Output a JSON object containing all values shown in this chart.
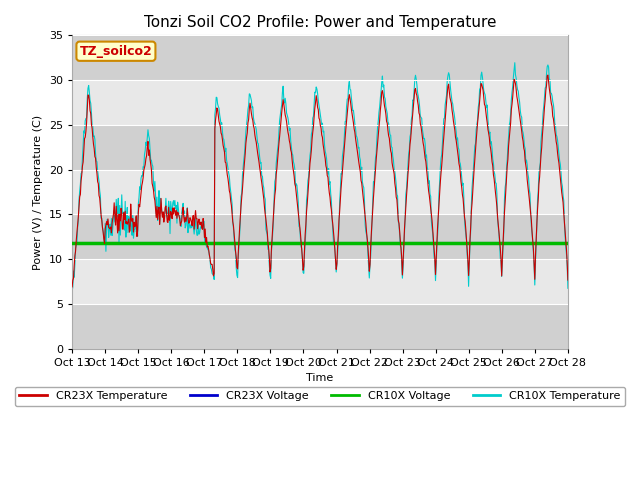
{
  "title": "Tonzi Soil CO2 Profile: Power and Temperature",
  "ylabel": "Power (V) / Temperature (C)",
  "xlabel": "Time",
  "ylim": [
    0,
    35
  ],
  "yticks": [
    0,
    5,
    10,
    15,
    20,
    25,
    30,
    35
  ],
  "cr10x_voltage": 11.75,
  "cr23x_voltage": 11.8,
  "figure_bg": "#ffffff",
  "plot_bg_light": "#e8e8e8",
  "plot_bg_dark": "#d0d0d0",
  "legend_labels": [
    "CR23X Temperature",
    "CR23X Voltage",
    "CR10X Voltage",
    "CR10X Temperature"
  ],
  "legend_colors": [
    "#cc0000",
    "#0000cc",
    "#00bb00",
    "#00cccc"
  ],
  "label_box_text": "TZ_soilco2",
  "label_box_color": "#ffffcc",
  "label_box_border": "#cc8800",
  "xtick_labels": [
    "Oct 13",
    "Oct 14",
    "Oct 15",
    "Oct 16",
    "Oct 17",
    "Oct 18",
    "Oct 19",
    "Oct 20",
    "Oct 21",
    "Oct 22",
    "Oct 23",
    "Oct 24",
    "Oct 25",
    "Oct 26",
    "Oct 27",
    "Oct 28"
  ],
  "title_fontsize": 11,
  "axis_fontsize": 8,
  "tick_fontsize": 8
}
